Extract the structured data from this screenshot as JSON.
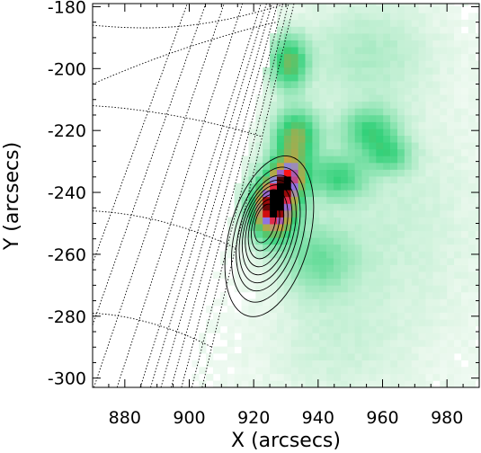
{
  "chart_data": {
    "type": "heatmap",
    "xlabel": "X (arcsecs)",
    "ylabel": "Y (arcsecs)",
    "xlim": [
      870,
      990
    ],
    "ylim": [
      -303,
      -179
    ],
    "x_ticks": [
      880,
      900,
      920,
      940,
      960,
      980
    ],
    "y_ticks": [
      -300,
      -280,
      -260,
      -240,
      -220,
      -200,
      -180
    ],
    "x_tick_labels": [
      "880",
      "900",
      "920",
      "940",
      "960",
      "980"
    ],
    "y_tick_labels": [
      "-300",
      "-280",
      "-260",
      "-240",
      "-220",
      "-200",
      "-180"
    ],
    "grid": "heliographic dotted grid lines",
    "colors": {
      "emission_low": "#e6f7ea",
      "emission_mid": "#33d17a",
      "emission_high": "#c8a040",
      "peak_blue": "#8080ff",
      "peak_red": "#ff1010",
      "peak_core": "#000000",
      "contour": "#000000"
    },
    "emission_sources": [
      {
        "x": 931,
        "y": -198,
        "sx": 4,
        "sy": 6,
        "a": 0.5
      },
      {
        "x": 933,
        "y": -222,
        "sx": 5,
        "sy": 6,
        "a": 0.55
      },
      {
        "x": 931,
        "y": -235,
        "sx": 4,
        "sy": 5,
        "a": 0.65
      },
      {
        "x": 926,
        "y": -245,
        "sx": 5,
        "sy": 7,
        "a": 1.0
      },
      {
        "x": 946,
        "y": -235,
        "sx": 6,
        "sy": 5,
        "a": 0.35
      },
      {
        "x": 956,
        "y": -220,
        "sx": 6,
        "sy": 5,
        "a": 0.35
      },
      {
        "x": 962,
        "y": -228,
        "sx": 5,
        "sy": 4,
        "a": 0.28
      },
      {
        "x": 940,
        "y": -262,
        "sx": 8,
        "sy": 8,
        "a": 0.25
      },
      {
        "x": 955,
        "y": -195,
        "sx": 14,
        "sy": 12,
        "a": 0.14
      },
      {
        "x": 962,
        "y": -250,
        "sx": 18,
        "sy": 25,
        "a": 0.09
      },
      {
        "x": 945,
        "y": -290,
        "sx": 15,
        "sy": 12,
        "a": 0.07
      }
    ],
    "contours": {
      "center_x": 923.5,
      "center_y": -250,
      "semi_major_arcsec": [
        3,
        4,
        5,
        6,
        7,
        8,
        9,
        10.5,
        12.5
      ],
      "aspect": 2.6,
      "tilt_deg": 15
    }
  }
}
